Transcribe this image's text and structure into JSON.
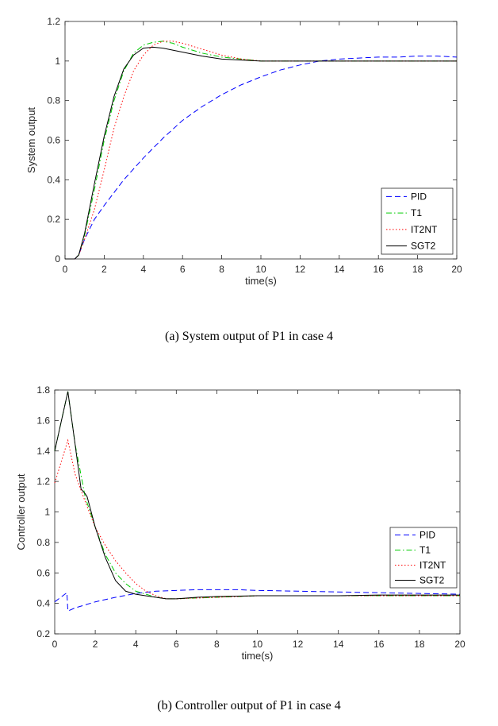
{
  "chart_data": [
    {
      "type": "line",
      "caption": "(a) System output of P1 in case 4",
      "xlabel": "time(s)",
      "ylabel": "System output",
      "xlim": [
        0,
        20
      ],
      "ylim": [
        0,
        1.2
      ],
      "xticks": [
        0,
        2,
        4,
        6,
        8,
        10,
        12,
        14,
        16,
        18,
        20
      ],
      "yticks": [
        0,
        0.2,
        0.4,
        0.6,
        0.8,
        1,
        1.2
      ],
      "ytick_labels": [
        "0",
        "0.2",
        "0.4",
        "0.6",
        "0.8",
        "1",
        "1.2"
      ],
      "grid": false,
      "legend_position": "bottom-right",
      "series": [
        {
          "name": "PID",
          "color": "#0000ff",
          "dash": "dashed",
          "x": [
            0,
            0.5,
            0.7,
            1,
            1.5,
            2,
            3,
            4,
            5,
            6,
            7,
            8,
            9,
            10,
            11,
            12,
            13,
            14,
            15,
            16,
            17,
            18,
            19,
            20
          ],
          "y": [
            0,
            0,
            0.02,
            0.1,
            0.2,
            0.27,
            0.4,
            0.51,
            0.61,
            0.7,
            0.77,
            0.83,
            0.88,
            0.92,
            0.955,
            0.98,
            1.0,
            1.01,
            1.015,
            1.02,
            1.02,
            1.025,
            1.025,
            1.02
          ]
        },
        {
          "name": "T1",
          "color": "#00cc00",
          "dash": "dashdot",
          "x": [
            0,
            0.5,
            0.7,
            1,
            1.5,
            2,
            2.5,
            3,
            3.5,
            4,
            4.5,
            5,
            5.5,
            6,
            7,
            8,
            9,
            10,
            11,
            12,
            14,
            16,
            18,
            20
          ],
          "y": [
            0,
            0,
            0.02,
            0.12,
            0.35,
            0.6,
            0.8,
            0.95,
            1.04,
            1.08,
            1.095,
            1.1,
            1.09,
            1.07,
            1.04,
            1.02,
            1.01,
            1.0,
            1.0,
            1.0,
            1.0,
            1.0,
            1.0,
            1.0
          ]
        },
        {
          "name": "IT2NT",
          "color": "#ff0000",
          "dash": "dotted",
          "x": [
            0,
            0.5,
            0.7,
            1,
            1.5,
            2,
            2.5,
            3,
            3.5,
            4,
            4.5,
            5,
            5.5,
            6,
            7,
            8,
            9,
            10,
            11,
            12,
            14,
            16,
            18,
            20
          ],
          "y": [
            0,
            0,
            0.02,
            0.1,
            0.25,
            0.45,
            0.66,
            0.82,
            0.95,
            1.03,
            1.08,
            1.1,
            1.1,
            1.09,
            1.06,
            1.03,
            1.01,
            1.0,
            1.0,
            1.0,
            1.0,
            1.0,
            1.0,
            1.0
          ]
        },
        {
          "name": "SGT2",
          "color": "#000000",
          "dash": "solid",
          "x": [
            0,
            0.5,
            0.7,
            1,
            1.5,
            2,
            2.5,
            3,
            3.5,
            4,
            4.5,
            5,
            5.5,
            6,
            7,
            8,
            9,
            10,
            11,
            12,
            14,
            16,
            18,
            20
          ],
          "y": [
            0,
            0,
            0.02,
            0.13,
            0.38,
            0.62,
            0.82,
            0.96,
            1.03,
            1.065,
            1.07,
            1.065,
            1.055,
            1.045,
            1.025,
            1.01,
            1.005,
            1.0,
            1.0,
            1.0,
            1.0,
            1.0,
            1.0,
            1.0
          ]
        }
      ]
    },
    {
      "type": "line",
      "caption": "(b) Controller output of P1 in case 4",
      "xlabel": "time(s)",
      "ylabel": "Controller output",
      "xlim": [
        0,
        20
      ],
      "ylim": [
        0.2,
        1.8
      ],
      "xticks": [
        0,
        2,
        4,
        6,
        8,
        10,
        12,
        14,
        16,
        18,
        20
      ],
      "yticks": [
        0.2,
        0.4,
        0.6,
        0.8,
        1,
        1.2,
        1.4,
        1.6,
        1.8
      ],
      "ytick_labels": [
        "0.2",
        "0.4",
        "0.6",
        "0.8",
        "1",
        "1.2",
        "1.4",
        "1.6",
        "1.8"
      ],
      "grid": false,
      "legend_position": "right",
      "series": [
        {
          "name": "PID",
          "color": "#0000ff",
          "dash": "dashed",
          "x": [
            0,
            0.6,
            0.65,
            1,
            1.5,
            2,
            3,
            4,
            5,
            6,
            7,
            8,
            9,
            10,
            12,
            14,
            16,
            18,
            20
          ],
          "y": [
            0.41,
            0.47,
            0.35,
            0.37,
            0.39,
            0.41,
            0.44,
            0.465,
            0.48,
            0.485,
            0.49,
            0.49,
            0.49,
            0.485,
            0.48,
            0.475,
            0.47,
            0.465,
            0.46
          ]
        },
        {
          "name": "T1",
          "color": "#00cc00",
          "dash": "dashdot",
          "x": [
            0,
            0.65,
            1,
            1.5,
            2,
            2.5,
            3,
            3.5,
            4,
            5,
            5.5,
            6,
            7,
            8,
            10,
            12,
            14,
            16,
            18,
            20
          ],
          "y": [
            1.4,
            1.79,
            1.45,
            1.1,
            0.9,
            0.72,
            0.6,
            0.53,
            0.48,
            0.44,
            0.43,
            0.43,
            0.435,
            0.44,
            0.45,
            0.45,
            0.45,
            0.45,
            0.45,
            0.45
          ]
        },
        {
          "name": "IT2NT",
          "color": "#ff0000",
          "dash": "dotted",
          "x": [
            0,
            0.65,
            1,
            1.5,
            2,
            2.5,
            3,
            3.5,
            4,
            4.5,
            5,
            5.5,
            6,
            7,
            8,
            10,
            12,
            14,
            16,
            18,
            20
          ],
          "y": [
            1.19,
            1.47,
            1.25,
            1.07,
            0.9,
            0.78,
            0.68,
            0.6,
            0.53,
            0.48,
            0.45,
            0.43,
            0.43,
            0.435,
            0.44,
            0.45,
            0.45,
            0.45,
            0.45,
            0.45,
            0.45
          ]
        },
        {
          "name": "SGT2",
          "color": "#000000",
          "dash": "solid",
          "x": [
            0,
            0.65,
            1,
            1.3,
            1.5,
            1.6,
            2,
            2.5,
            3,
            3.5,
            4,
            5,
            5.5,
            6,
            7,
            8,
            10,
            12,
            14,
            16,
            18,
            20
          ],
          "y": [
            1.4,
            1.79,
            1.45,
            1.15,
            1.12,
            1.1,
            0.9,
            0.7,
            0.55,
            0.48,
            0.46,
            0.44,
            0.43,
            0.43,
            0.44,
            0.445,
            0.45,
            0.45,
            0.45,
            0.455,
            0.455,
            0.455
          ]
        }
      ]
    }
  ]
}
